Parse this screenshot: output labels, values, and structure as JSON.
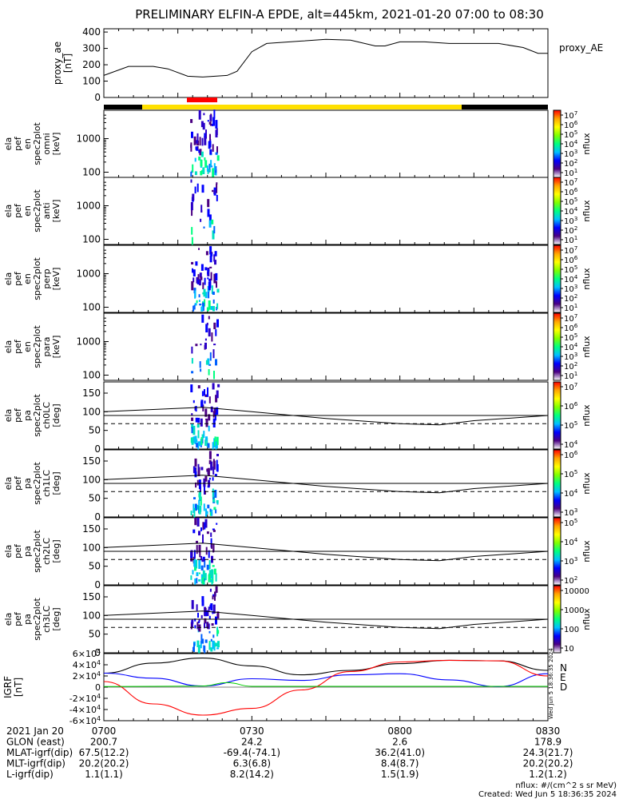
{
  "title": "PRELIMINARY ELFIN-A EPDE, alt=445km, 2021-01-20 07:00 to 08:30",
  "colors": {
    "bar_black": "#000000",
    "bar_yellow": "#ffe000",
    "bar_red": "#ff0000",
    "igrf_n": "#000000",
    "igrf_e": "#0000ff",
    "igrf_d": "#ff0000",
    "igrf_extra": "#00cc00"
  },
  "colorbar_stops": [
    "#ffffff",
    "#4b0082",
    "#0000ff",
    "#00bfff",
    "#00ff80",
    "#7fff00",
    "#ffff00",
    "#ffa500",
    "#ff0000"
  ],
  "chart_data": [
    {
      "type": "line",
      "panel": "proxy_ae",
      "ylabel": [
        "proxy_ae",
        "[nT]"
      ],
      "ylim": [
        0,
        420
      ],
      "yticks": [
        "400",
        "300",
        "200",
        "100",
        "0"
      ],
      "series_label": "proxy_AE",
      "x_minutes": [
        0,
        5,
        10,
        13,
        17,
        20,
        25,
        27,
        30,
        33,
        40,
        45,
        50,
        55,
        57,
        60,
        65,
        70,
        75,
        80,
        85,
        88,
        90
      ],
      "values": [
        135,
        190,
        190,
        175,
        130,
        125,
        135,
        160,
        280,
        330,
        345,
        355,
        350,
        315,
        315,
        340,
        340,
        330,
        330,
        330,
        305,
        270,
        270
      ]
    },
    {
      "type": "heatmap",
      "panel": "omni",
      "ylabel": [
        "ela",
        "pef",
        "en",
        "spec2plot",
        "omni",
        "[keV]"
      ],
      "scale": "log",
      "yticks": [
        "1000",
        "100"
      ],
      "colorbar_ticks": [
        "10^7",
        "10^6",
        "10^5",
        "10^4",
        "10^3",
        "10^2",
        "10^1"
      ],
      "zlabel": "nflux"
    },
    {
      "type": "heatmap",
      "panel": "anti",
      "ylabel": [
        "ela",
        "pef",
        "en",
        "spec2plot",
        "anti",
        "[keV]"
      ],
      "scale": "log",
      "yticks": [
        "1000",
        "100"
      ],
      "colorbar_ticks": [
        "10^7",
        "10^6",
        "10^5",
        "10^4",
        "10^3",
        "10^2",
        "10^1"
      ],
      "zlabel": "nflux"
    },
    {
      "type": "heatmap",
      "panel": "perp",
      "ylabel": [
        "ela",
        "pef",
        "en",
        "spec2plot",
        "perp",
        "[keV]"
      ],
      "scale": "log",
      "yticks": [
        "1000",
        "100"
      ],
      "colorbar_ticks": [
        "10^7",
        "10^6",
        "10^5",
        "10^4",
        "10^3",
        "10^2",
        "10^1"
      ],
      "zlabel": "nflux"
    },
    {
      "type": "heatmap",
      "panel": "para",
      "ylabel": [
        "ela",
        "pef",
        "en",
        "spec2plot",
        "para",
        "[keV]"
      ],
      "scale": "log",
      "yticks": [
        "1000",
        "100"
      ],
      "colorbar_ticks": [
        "10^7",
        "10^6",
        "10^5",
        "10^4",
        "10^3",
        "10^2",
        "10^1"
      ],
      "zlabel": "nflux"
    },
    {
      "type": "heatmap",
      "panel": "ch0LC",
      "ylabel": [
        "ela",
        "pef",
        "pa",
        "spec2plot",
        "ch0LC",
        "[deg]"
      ],
      "ylim": [
        0,
        180
      ],
      "yticks": [
        "150",
        "100",
        "50",
        "0"
      ],
      "colorbar_ticks": [
        "10^7",
        "10^6",
        "10^5",
        "10^4"
      ],
      "zlabel": "nflux"
    },
    {
      "type": "heatmap",
      "panel": "ch1LC",
      "ylabel": [
        "ela",
        "pef",
        "pa",
        "spec2plot",
        "ch1LC",
        "[deg]"
      ],
      "ylim": [
        0,
        180
      ],
      "yticks": [
        "150",
        "100",
        "50",
        "0"
      ],
      "colorbar_ticks": [
        "10^6",
        "10^5",
        "10^4",
        "10^3"
      ],
      "zlabel": "nflux"
    },
    {
      "type": "heatmap",
      "panel": "ch2LC",
      "ylabel": [
        "ela",
        "pef",
        "pa",
        "spec2plot",
        "ch2LC",
        "[deg]"
      ],
      "ylim": [
        0,
        180
      ],
      "yticks": [
        "150",
        "100",
        "50",
        "0"
      ],
      "colorbar_ticks": [
        "10^5",
        "10^4",
        "10^3",
        "10^2"
      ],
      "zlabel": "nflux"
    },
    {
      "type": "heatmap",
      "panel": "ch3LC",
      "ylabel": [
        "ela",
        "pef",
        "pa",
        "spec2plot",
        "ch3LC",
        "[deg]"
      ],
      "ylim": [
        0,
        180
      ],
      "yticks": [
        "150",
        "100",
        "50",
        "0"
      ],
      "colorbar_ticks": [
        "10000",
        "1000",
        "100",
        "10"
      ],
      "zlabel": "nflux"
    },
    {
      "type": "line",
      "panel": "IGRF",
      "ylabel": [
        "IGRF",
        "[nT]"
      ],
      "ylim": [
        -60000,
        60000
      ],
      "yticks": [
        "6×10^4",
        "4×10^4",
        "2×10^4",
        "0",
        "-2×10^4",
        "-4×10^4",
        "-6×10^4"
      ],
      "legend": [
        "N",
        "E",
        "D"
      ],
      "x_minutes": [
        0,
        10,
        20,
        30,
        40,
        50,
        60,
        70,
        80,
        90
      ],
      "series": [
        {
          "name": "N",
          "values": [
            25000,
            43000,
            52000,
            38000,
            22000,
            30000,
            42000,
            48000,
            47000,
            30000
          ]
        },
        {
          "name": "E",
          "values": [
            25000,
            16000,
            2000,
            15000,
            12000,
            22000,
            24000,
            13000,
            1000,
            24000
          ]
        },
        {
          "name": "D",
          "values": [
            10000,
            -30000,
            -50000,
            -38000,
            -5000,
            28000,
            45000,
            48000,
            47000,
            20000
          ]
        }
      ]
    }
  ],
  "time_axis": {
    "ticks": [
      "0700",
      "0730",
      "0800",
      "0830"
    ],
    "tick_minutes": [
      0,
      30,
      60,
      90
    ],
    "rows": [
      {
        "label": "2021 Jan 20",
        "values": [
          "0700",
          "0730",
          "0800",
          "0830"
        ]
      },
      {
        "label": "GLON (east)",
        "values": [
          "200.7",
          "24.2",
          "2.6",
          "178.9"
        ]
      },
      {
        "label": "MLAT-igrf(dip)",
        "values": [
          "67.5(12.2)",
          "-69.4(-74.1)",
          "36.2(41.0)",
          "24.3(21.7)"
        ]
      },
      {
        "label": "MLT-igrf(dip)",
        "values": [
          "20.2(20.2)",
          "6.3(6.8)",
          "8.4(8.7)",
          "20.2(20.2)"
        ]
      },
      {
        "label": "L-igrf(dip)",
        "values": [
          "1.1(1.1)",
          "8.2(14.2)",
          "1.5(1.9)",
          "1.2(1.2)"
        ]
      }
    ]
  },
  "footer": {
    "units": "nflux: #/(cm^2 s sr MeV)",
    "created": "Created: Wed Jun  5 18:36:35 2024",
    "vertical_stamp": "Wed Jun  5 18:36:35 2024"
  }
}
